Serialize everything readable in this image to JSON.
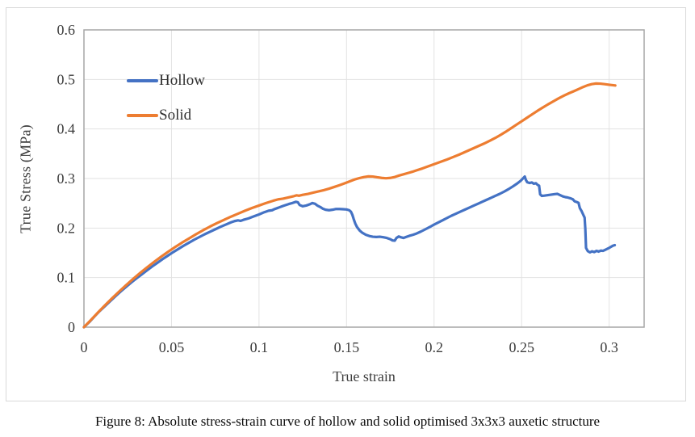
{
  "figure": {
    "caption": "Figure 8: Absolute stress-strain curve of hollow and solid optimised 3x3x3 auxetic structure"
  },
  "chart_data": {
    "type": "line",
    "title": "",
    "xlabel": "True strain",
    "ylabel": "True Stress (MPa)",
    "xlim": [
      0,
      0.32
    ],
    "ylim": [
      0,
      0.6
    ],
    "grid": true,
    "legend_position": "inside-top-left",
    "grid_color": "#e2e2e2",
    "axis_color": "#a6a6a6",
    "tick_color": "#3d3d3d",
    "x_ticks": {
      "values": [
        0,
        0.05,
        0.1,
        0.15,
        0.2,
        0.25,
        0.3
      ],
      "labels": [
        "0",
        "0.05",
        "0.1",
        "0.15",
        "0.2",
        "0.25",
        "0.3"
      ]
    },
    "y_ticks": {
      "values": [
        0,
        0.1,
        0.2,
        0.3,
        0.4,
        0.5,
        0.6
      ],
      "labels": [
        "0",
        "0.1",
        "0.2",
        "0.3",
        "0.4",
        "0.5",
        "0.6"
      ]
    },
    "series": [
      {
        "name": "Hollow",
        "color": "#4472C4",
        "points": [
          [
            0,
            0
          ],
          [
            0.003,
            0.01
          ],
          [
            0.006,
            0.0215
          ],
          [
            0.009,
            0.0325
          ],
          [
            0.012,
            0.0425
          ],
          [
            0.015,
            0.0525
          ],
          [
            0.018,
            0.0625
          ],
          [
            0.021,
            0.072
          ],
          [
            0.024,
            0.081
          ],
          [
            0.027,
            0.09
          ],
          [
            0.03,
            0.0985
          ],
          [
            0.033,
            0.1065
          ],
          [
            0.036,
            0.1145
          ],
          [
            0.039,
            0.1225
          ],
          [
            0.042,
            0.13
          ],
          [
            0.045,
            0.1375
          ],
          [
            0.048,
            0.1445
          ],
          [
            0.051,
            0.1515
          ],
          [
            0.054,
            0.158
          ],
          [
            0.057,
            0.1645
          ],
          [
            0.06,
            0.1705
          ],
          [
            0.063,
            0.1765
          ],
          [
            0.066,
            0.182
          ],
          [
            0.069,
            0.1875
          ],
          [
            0.072,
            0.1925
          ],
          [
            0.075,
            0.1975
          ],
          [
            0.078,
            0.2025
          ],
          [
            0.081,
            0.207
          ],
          [
            0.084,
            0.2115
          ],
          [
            0.086,
            0.214
          ],
          [
            0.088,
            0.2155
          ],
          [
            0.0895,
            0.2145
          ],
          [
            0.091,
            0.2165
          ],
          [
            0.094,
            0.2195
          ],
          [
            0.097,
            0.2235
          ],
          [
            0.1,
            0.2275
          ],
          [
            0.103,
            0.232
          ],
          [
            0.1055,
            0.235
          ],
          [
            0.1075,
            0.236
          ],
          [
            0.109,
            0.2385
          ],
          [
            0.111,
            0.241
          ],
          [
            0.114,
            0.245
          ],
          [
            0.117,
            0.2485
          ],
          [
            0.119,
            0.2505
          ],
          [
            0.121,
            0.253
          ],
          [
            0.1222,
            0.252
          ],
          [
            0.1232,
            0.2465
          ],
          [
            0.125,
            0.244
          ],
          [
            0.127,
            0.2455
          ],
          [
            0.129,
            0.248
          ],
          [
            0.1305,
            0.2505
          ],
          [
            0.132,
            0.249
          ],
          [
            0.1335,
            0.245
          ],
          [
            0.135,
            0.2425
          ],
          [
            0.1365,
            0.239
          ],
          [
            0.138,
            0.237
          ],
          [
            0.14,
            0.236
          ],
          [
            0.142,
            0.237
          ],
          [
            0.144,
            0.2385
          ],
          [
            0.146,
            0.2385
          ],
          [
            0.148,
            0.238
          ],
          [
            0.15,
            0.2375
          ],
          [
            0.1515,
            0.236
          ],
          [
            0.1525,
            0.233
          ],
          [
            0.1533,
            0.227
          ],
          [
            0.1541,
            0.218
          ],
          [
            0.155,
            0.209
          ],
          [
            0.156,
            0.202
          ],
          [
            0.1575,
            0.195
          ],
          [
            0.159,
            0.1905
          ],
          [
            0.161,
            0.1865
          ],
          [
            0.163,
            0.184
          ],
          [
            0.165,
            0.1825
          ],
          [
            0.167,
            0.182
          ],
          [
            0.169,
            0.1825
          ],
          [
            0.171,
            0.1815
          ],
          [
            0.173,
            0.18
          ],
          [
            0.175,
            0.1775
          ],
          [
            0.1763,
            0.175
          ],
          [
            0.1775,
            0.1745
          ],
          [
            0.1785,
            0.18
          ],
          [
            0.1798,
            0.183
          ],
          [
            0.181,
            0.1815
          ],
          [
            0.1825,
            0.18
          ],
          [
            0.184,
            0.182
          ],
          [
            0.186,
            0.1845
          ],
          [
            0.188,
            0.1865
          ],
          [
            0.19,
            0.189
          ],
          [
            0.1925,
            0.193
          ],
          [
            0.195,
            0.1975
          ],
          [
            0.1975,
            0.202
          ],
          [
            0.2,
            0.207
          ],
          [
            0.2025,
            0.2115
          ],
          [
            0.205,
            0.216
          ],
          [
            0.2075,
            0.2205
          ],
          [
            0.21,
            0.225
          ],
          [
            0.2125,
            0.229
          ],
          [
            0.215,
            0.233
          ],
          [
            0.2175,
            0.237
          ],
          [
            0.22,
            0.241
          ],
          [
            0.2225,
            0.245
          ],
          [
            0.225,
            0.249
          ],
          [
            0.2275,
            0.253
          ],
          [
            0.23,
            0.257
          ],
          [
            0.2325,
            0.261
          ],
          [
            0.235,
            0.265
          ],
          [
            0.2375,
            0.269
          ],
          [
            0.24,
            0.2735
          ],
          [
            0.2425,
            0.2785
          ],
          [
            0.245,
            0.284
          ],
          [
            0.2475,
            0.29
          ],
          [
            0.2495,
            0.2955
          ],
          [
            0.251,
            0.301
          ],
          [
            0.2518,
            0.304
          ],
          [
            0.2524,
            0.2975
          ],
          [
            0.2532,
            0.2925
          ],
          [
            0.2545,
            0.291
          ],
          [
            0.2558,
            0.292
          ],
          [
            0.257,
            0.2895
          ],
          [
            0.2582,
            0.2905
          ],
          [
            0.2592,
            0.287
          ],
          [
            0.26,
            0.2855
          ],
          [
            0.2606,
            0.268
          ],
          [
            0.2615,
            0.265
          ],
          [
            0.263,
            0.2655
          ],
          [
            0.265,
            0.2665
          ],
          [
            0.267,
            0.2675
          ],
          [
            0.269,
            0.2685
          ],
          [
            0.2705,
            0.269
          ],
          [
            0.272,
            0.2665
          ],
          [
            0.2735,
            0.264
          ],
          [
            0.275,
            0.2625
          ],
          [
            0.2765,
            0.2615
          ],
          [
            0.278,
            0.26
          ],
          [
            0.2793,
            0.258
          ],
          [
            0.2803,
            0.254
          ],
          [
            0.2815,
            0.2525
          ],
          [
            0.2825,
            0.251
          ],
          [
            0.2833,
            0.24
          ],
          [
            0.2843,
            0.234
          ],
          [
            0.2852,
            0.227
          ],
          [
            0.286,
            0.221
          ],
          [
            0.2864,
            0.198
          ],
          [
            0.2868,
            0.16
          ],
          [
            0.2878,
            0.1535
          ],
          [
            0.289,
            0.151
          ],
          [
            0.2902,
            0.153
          ],
          [
            0.2915,
            0.1515
          ],
          [
            0.2928,
            0.154
          ],
          [
            0.294,
            0.1525
          ],
          [
            0.2953,
            0.1545
          ],
          [
            0.2965,
            0.154
          ],
          [
            0.298,
            0.1565
          ],
          [
            0.2995,
            0.159
          ],
          [
            0.301,
            0.162
          ],
          [
            0.3022,
            0.1645
          ],
          [
            0.3032,
            0.1655
          ]
        ]
      },
      {
        "name": "Solid",
        "color": "#ED7D31",
        "points": [
          [
            0,
            0
          ],
          [
            0.004,
            0.0145
          ],
          [
            0.008,
            0.0295
          ],
          [
            0.012,
            0.044
          ],
          [
            0.016,
            0.058
          ],
          [
            0.02,
            0.0715
          ],
          [
            0.024,
            0.0845
          ],
          [
            0.028,
            0.097
          ],
          [
            0.032,
            0.109
          ],
          [
            0.036,
            0.1205
          ],
          [
            0.04,
            0.1315
          ],
          [
            0.044,
            0.142
          ],
          [
            0.048,
            0.152
          ],
          [
            0.052,
            0.1615
          ],
          [
            0.056,
            0.1705
          ],
          [
            0.06,
            0.179
          ],
          [
            0.064,
            0.1875
          ],
          [
            0.068,
            0.1955
          ],
          [
            0.072,
            0.203
          ],
          [
            0.076,
            0.21
          ],
          [
            0.08,
            0.2165
          ],
          [
            0.084,
            0.223
          ],
          [
            0.088,
            0.229
          ],
          [
            0.092,
            0.235
          ],
          [
            0.096,
            0.2405
          ],
          [
            0.1,
            0.2455
          ],
          [
            0.104,
            0.2505
          ],
          [
            0.108,
            0.255
          ],
          [
            0.111,
            0.258
          ],
          [
            0.1125,
            0.2588
          ],
          [
            0.114,
            0.2595
          ],
          [
            0.117,
            0.262
          ],
          [
            0.12,
            0.2645
          ],
          [
            0.1215,
            0.266
          ],
          [
            0.1228,
            0.2652
          ],
          [
            0.125,
            0.267
          ],
          [
            0.128,
            0.269
          ],
          [
            0.131,
            0.2715
          ],
          [
            0.134,
            0.274
          ],
          [
            0.137,
            0.2765
          ],
          [
            0.14,
            0.2795
          ],
          [
            0.143,
            0.283
          ],
          [
            0.146,
            0.2865
          ],
          [
            0.149,
            0.2905
          ],
          [
            0.152,
            0.2945
          ],
          [
            0.155,
            0.2985
          ],
          [
            0.1575,
            0.301
          ],
          [
            0.16,
            0.303
          ],
          [
            0.1625,
            0.3043
          ],
          [
            0.165,
            0.304
          ],
          [
            0.1675,
            0.3025
          ],
          [
            0.17,
            0.3012
          ],
          [
            0.1725,
            0.3005
          ],
          [
            0.175,
            0.3012
          ],
          [
            0.1775,
            0.303
          ],
          [
            0.18,
            0.306
          ],
          [
            0.1825,
            0.3085
          ],
          [
            0.185,
            0.311
          ],
          [
            0.1875,
            0.3135
          ],
          [
            0.19,
            0.3165
          ],
          [
            0.1935,
            0.3205
          ],
          [
            0.197,
            0.325
          ],
          [
            0.2005,
            0.3295
          ],
          [
            0.204,
            0.334
          ],
          [
            0.2075,
            0.3385
          ],
          [
            0.211,
            0.3435
          ],
          [
            0.2145,
            0.3485
          ],
          [
            0.218,
            0.354
          ],
          [
            0.2215,
            0.3595
          ],
          [
            0.225,
            0.365
          ],
          [
            0.2285,
            0.3705
          ],
          [
            0.232,
            0.3765
          ],
          [
            0.235,
            0.382
          ],
          [
            0.238,
            0.388
          ],
          [
            0.241,
            0.3945
          ],
          [
            0.244,
            0.4015
          ],
          [
            0.247,
            0.4085
          ],
          [
            0.25,
            0.4155
          ],
          [
            0.253,
            0.4225
          ],
          [
            0.256,
            0.4295
          ],
          [
            0.259,
            0.4365
          ],
          [
            0.262,
            0.443
          ],
          [
            0.265,
            0.4495
          ],
          [
            0.268,
            0.4555
          ],
          [
            0.271,
            0.4615
          ],
          [
            0.274,
            0.467
          ],
          [
            0.277,
            0.472
          ],
          [
            0.28,
            0.4765
          ],
          [
            0.2825,
            0.4805
          ],
          [
            0.285,
            0.4845
          ],
          [
            0.2875,
            0.488
          ],
          [
            0.29,
            0.4905
          ],
          [
            0.2925,
            0.4918
          ],
          [
            0.295,
            0.4915
          ],
          [
            0.2975,
            0.4905
          ],
          [
            0.3,
            0.4893
          ],
          [
            0.3035,
            0.4878
          ]
        ]
      }
    ]
  }
}
